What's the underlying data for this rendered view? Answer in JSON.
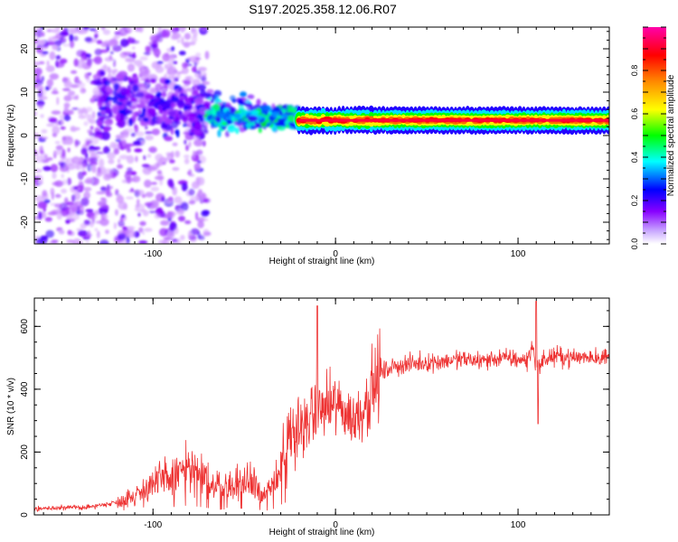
{
  "chart_data": [
    {
      "type": "heatmap",
      "title": "S197.2025.358.12.06.R07",
      "xlabel": "Height of straight line (km)",
      "ylabel": "Frequency (Hz)",
      "xlim": [
        -165,
        150
      ],
      "ylim": [
        -25,
        25
      ],
      "xticks": [
        -100,
        0,
        100
      ],
      "yticks": [
        -20,
        -10,
        0,
        10,
        20
      ],
      "colorbar": {
        "label": "Normalized spectral amplitude",
        "range": [
          0.0,
          1.0
        ],
        "ticks": [
          "0.0",
          "0.2",
          "0.4",
          "0.6",
          "0.8"
        ],
        "colormap": [
          "#ffffff",
          "#8800ff",
          "#0000ff",
          "#00ffff",
          "#00ff00",
          "#ffff00",
          "#ff8800",
          "#ff0000",
          "#ff00aa"
        ]
      },
      "features": [
        {
          "x_range": [
            -165,
            -70
          ],
          "freq_range": [
            -25,
            25
          ],
          "amplitude": 0.1,
          "description": "scattered noise"
        },
        {
          "x_range": [
            -70,
            -20
          ],
          "freq_range": [
            0,
            10
          ],
          "amplitude": 0.4,
          "description": "emerging carrier"
        },
        {
          "x_range": [
            -20,
            150
          ],
          "freq": 3.5,
          "amplitude": 0.9,
          "description": "stable carrier line"
        }
      ]
    },
    {
      "type": "line",
      "xlabel": "Height of straight line (km)",
      "ylabel": "SNR (10 * v/v)",
      "xlim": [
        -165,
        150
      ],
      "ylim": [
        0,
        690
      ],
      "xticks": [
        -100,
        0,
        100
      ],
      "yticks": [
        0,
        200,
        400,
        600
      ],
      "series": [
        {
          "name": "SNR",
          "color": "#ee3333",
          "x": [
            -165,
            -150,
            -135,
            -120,
            -110,
            -100,
            -90,
            -85,
            -80,
            -75,
            -70,
            -65,
            -60,
            -55,
            -50,
            -45,
            -40,
            -35,
            -30,
            -25,
            -20,
            -15,
            -10,
            -5,
            0,
            5,
            10,
            15,
            20,
            25,
            30,
            40,
            50,
            60,
            70,
            80,
            90,
            100,
            105,
            108,
            110,
            115,
            120,
            130,
            140,
            150
          ],
          "y": [
            20,
            22,
            25,
            40,
            60,
            100,
            120,
            140,
            150,
            130,
            110,
            90,
            85,
            95,
            100,
            120,
            60,
            80,
            160,
            230,
            280,
            300,
            330,
            340,
            350,
            330,
            300,
            340,
            400,
            450,
            470,
            480,
            485,
            490,
            495,
            490,
            500,
            495,
            490,
            540,
            470,
            495,
            505,
            500,
            505,
            500
          ]
        }
      ],
      "annotations": [
        {
          "x": -10,
          "y": 665,
          "label": "spike"
        },
        {
          "x": 110,
          "y": 680,
          "label": "spike"
        }
      ]
    }
  ]
}
